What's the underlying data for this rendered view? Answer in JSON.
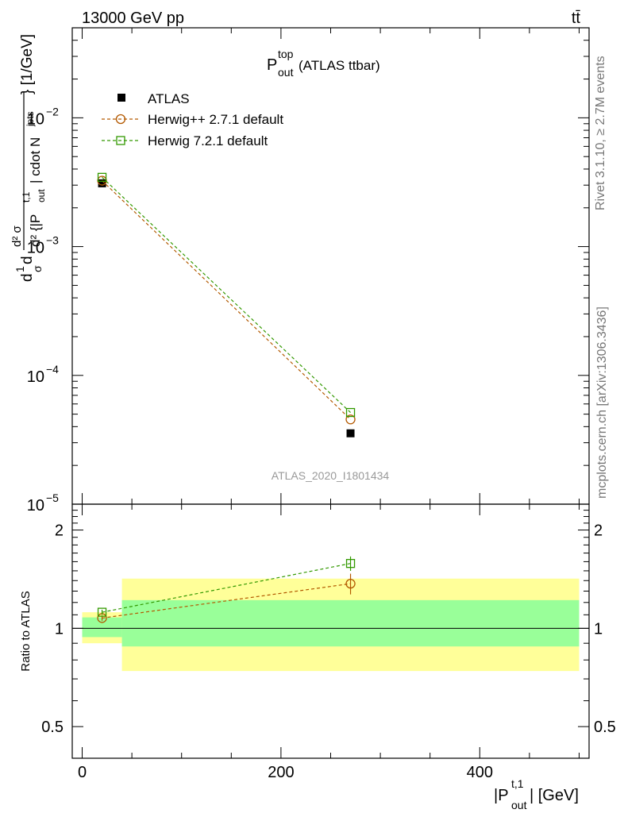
{
  "header": {
    "beam": "13000 GeV pp",
    "process": "tt̄"
  },
  "plot_title": {
    "main": "P",
    "sup": "top",
    "sub": "out",
    "suffix": " (ATLAS ttbar)"
  },
  "y_label_top": {
    "part1": "d",
    "part2": "1",
    "part3": "d",
    "part4": "σ",
    "part5": "d² σ",
    "part6": "d² {|P",
    "part7": "t,1",
    "part8": "out",
    "part9": "| cdot N",
    "part10": "jets",
    "part11": "} [1/GeV]"
  },
  "y_label_ratio": "Ratio to ATLAS",
  "x_label": {
    "main": "|P",
    "sup": "t,1",
    "sub": "out",
    "suffix": "| [GeV]"
  },
  "watermark": "ATLAS_2020_I1801434",
  "side_text_top": "Rivet 3.1.10, ≥ 2.7M events",
  "side_text_bottom": "mcplots.cern.ch [arXiv:1306.3436]",
  "colors": {
    "atlas": "#000000",
    "herwigpp": "#b35900",
    "herwig7": "#339900",
    "band_stat": "#99ff99",
    "band_total": "#ffff99"
  },
  "chart_data": [
    {
      "type": "scatter",
      "panel": "main",
      "ylabel": "d²σ / d{|P_out^t,1| cdot N_jets} [1/GeV]",
      "xlim": [
        -10,
        510
      ],
      "ylim": [
        1e-05,
        0.05
      ],
      "y_scale": "log",
      "y_ticks": [
        {
          "value": 1e-05,
          "base": "10",
          "exp": "−5"
        },
        {
          "value": 0.0001,
          "base": "10",
          "exp": "−4"
        },
        {
          "value": 0.001,
          "base": "10",
          "exp": "−3"
        },
        {
          "value": 0.01,
          "base": "10",
          "exp": "−2"
        }
      ],
      "legend_position": "top-left",
      "series": [
        {
          "name": "ATLAS",
          "marker": "filled-square",
          "x": [
            20,
            270
          ],
          "y": [
            0.0031,
            3.55e-05
          ]
        },
        {
          "name": "Herwig++ 2.7.1 default",
          "marker": "open-circle",
          "line": "dashed",
          "x": [
            20,
            270
          ],
          "y": [
            0.00325,
            4.55e-05
          ]
        },
        {
          "name": "Herwig 7.2.1 default",
          "marker": "open-square",
          "line": "dashed",
          "x": [
            20,
            270
          ],
          "y": [
            0.00345,
            5.15e-05
          ]
        }
      ]
    },
    {
      "type": "scatter",
      "panel": "ratio",
      "ylabel": "Ratio to ATLAS",
      "xlabel": "|P_out^t,1| [GeV]",
      "xlim": [
        -10,
        510
      ],
      "ylim": [
        0.4,
        2.4
      ],
      "y_scale": "log",
      "y_ticks": [
        0.5,
        1,
        2
      ],
      "x_ticks": [
        0,
        200,
        400
      ],
      "reference_line": 1,
      "bands": [
        {
          "x_from": 0,
          "x_to": 40,
          "stat": [
            0.94,
            1.08
          ],
          "total": [
            0.9,
            1.12
          ]
        },
        {
          "x_from": 40,
          "x_to": 500,
          "stat": [
            0.88,
            1.22
          ],
          "total": [
            0.74,
            1.42
          ]
        }
      ],
      "series": [
        {
          "name": "Herwig++ 2.7.1 default",
          "marker": "open-circle",
          "line": "dashed",
          "x": [
            20,
            270
          ],
          "y": [
            1.075,
            1.37
          ],
          "yerr": [
            0.02,
            0.1
          ]
        },
        {
          "name": "Herwig 7.2.1 default",
          "marker": "open-square",
          "line": "dashed",
          "x": [
            20,
            270
          ],
          "y": [
            1.12,
            1.58
          ],
          "yerr": [
            0.02,
            0.08
          ]
        }
      ]
    }
  ]
}
